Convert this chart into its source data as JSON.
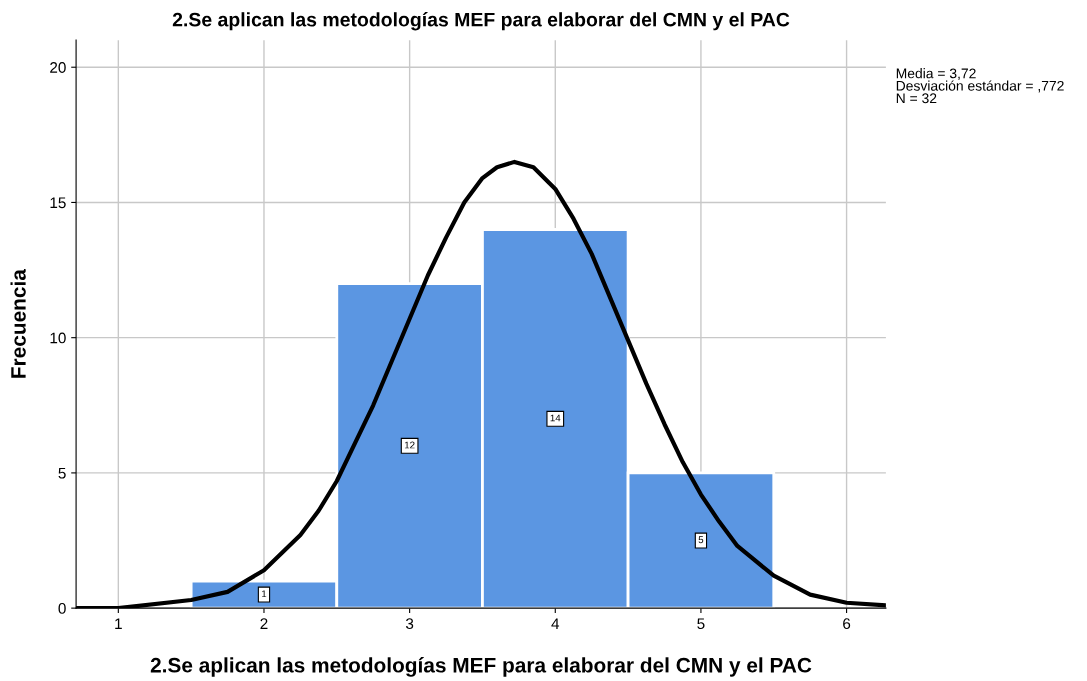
{
  "chart_data": {
    "type": "histogram",
    "title": "2.Se aplican las metodologías MEF para elaborar del CMN y el PAC",
    "xlabel": "2.Se aplican las metodologías MEF para elaborar del CMN y el PAC",
    "ylabel": "Frecuencia",
    "bins": [
      1.5,
      2.5,
      3.5,
      4.5,
      5.5
    ],
    "values": [
      1,
      12,
      14,
      5
    ],
    "color": "#5b96e2",
    "value_labels": [
      "1",
      "12",
      "14",
      "5"
    ],
    "series": [
      {
        "type": "line",
        "color": "#000000",
        "x": [
          0.71,
          1.0,
          1.5,
          1.75,
          2.0,
          2.25,
          2.375,
          2.5,
          2.625,
          2.75,
          2.875,
          3.0,
          3.125,
          3.25,
          3.375,
          3.5,
          3.6,
          3.72,
          3.85,
          4.0,
          4.125,
          4.25,
          4.375,
          4.5,
          4.625,
          4.75,
          4.875,
          5.0,
          5.125,
          5.25,
          5.5,
          5.75,
          6.0,
          6.27
        ],
        "values": [
          0.0,
          0.0,
          0.3,
          0.6,
          1.4,
          2.7,
          3.6,
          4.7,
          6.1,
          7.5,
          9.1,
          10.7,
          12.3,
          13.7,
          15.0,
          15.9,
          16.3,
          16.5,
          16.3,
          15.5,
          14.4,
          13.1,
          11.5,
          9.9,
          8.3,
          6.8,
          5.4,
          4.2,
          3.2,
          2.3,
          1.2,
          0.5,
          0.2,
          0.1
        ]
      }
    ],
    "xlim": [
      0.71,
      6.27
    ],
    "xticks": [
      1,
      2,
      3,
      4,
      5,
      6
    ],
    "ylim": [
      0,
      21
    ],
    "yticks": [
      0,
      5,
      10,
      15,
      20
    ],
    "grid": true,
    "annotations": [
      "Media = 3,72",
      "Desviación estándar = ,772",
      "N = 32"
    ]
  }
}
